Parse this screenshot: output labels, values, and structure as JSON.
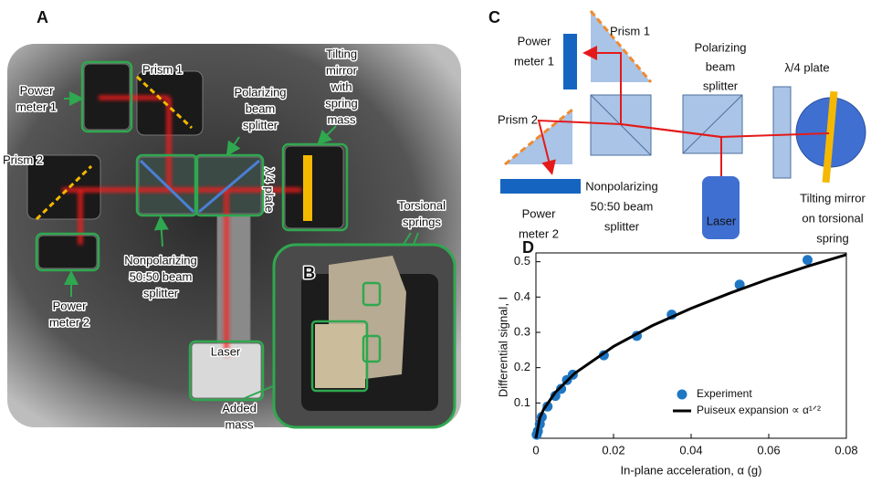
{
  "panel_a": {
    "letter": "A",
    "labels": {
      "prism_1": "Prism 1",
      "power_meter_1": [
        "Power",
        "meter 1"
      ],
      "polarizing_beam_splitter": [
        "Polarizing",
        "beam",
        "splitter"
      ],
      "tilting_mirror": [
        "Tilting",
        "mirror",
        "with",
        "spring",
        "mass"
      ],
      "prism_2": "Prism 2",
      "quarter_wave_plate": "λ/4 plate",
      "nonpolarizing_beam_splitter": [
        "Nonpolarizing",
        "50:50 beam",
        "splitter"
      ],
      "power_meter_2": [
        "Power",
        "meter 2"
      ],
      "laser": "Laser",
      "added_mass": [
        "Added",
        "mass"
      ],
      "torsional_springs": [
        "Torsional",
        "springs"
      ]
    }
  },
  "panel_b": {
    "letter": "B"
  },
  "panel_c": {
    "letter": "C",
    "labels": {
      "power_meter_1": [
        "Power",
        "meter 1"
      ],
      "prism_1": "Prism 1",
      "polarizing_beam_splitter": [
        "Polarizing",
        "beam",
        "splitter"
      ],
      "quarter_wave_plate": "λ/4 plate",
      "prism_2": "Prism 2",
      "power_meter_2": [
        "Power",
        "meter 2"
      ],
      "nonpolarizing_beam_splitter": [
        "Nonpolarizing",
        "50:50 beam",
        "splitter"
      ],
      "laser": "Laser",
      "tilting_mirror": [
        "Tilting mirror",
        "on torsional",
        "spring"
      ]
    }
  },
  "chart_data": {
    "type": "scatter",
    "letter": "D",
    "x_label": "In-plane acceleration, α (g)",
    "y_label": "Differential signal, I",
    "xlim": [
      0,
      0.08
    ],
    "ylim": [
      0,
      0.525
    ],
    "xticks": [
      0,
      0.02,
      0.04,
      0.06,
      0.08
    ],
    "yticks": [
      0.1,
      0.2,
      0.3,
      0.4,
      0.5
    ],
    "legend": "lower right",
    "series": [
      {
        "name": "Experiment",
        "type": "scatter",
        "color": "#1f77c4",
        "x": [
          0.0002,
          0.0005,
          0.001,
          0.0015,
          0.003,
          0.005,
          0.0065,
          0.008,
          0.0095,
          0.0175,
          0.026,
          0.035,
          0.0525,
          0.07
        ],
        "values": [
          0.01,
          0.02,
          0.04,
          0.06,
          0.09,
          0.12,
          0.14,
          0.165,
          0.18,
          0.235,
          0.29,
          0.35,
          0.435,
          0.505
        ]
      },
      {
        "name": "Puiseux expansion ∝ α¹ᐟ²",
        "type": "line",
        "color": "#000000",
        "x": [
          0,
          0.001,
          0.002,
          0.005,
          0.01,
          0.02,
          0.03,
          0.04,
          0.05,
          0.06,
          0.07,
          0.08
        ],
        "values": [
          0,
          0.058,
          0.082,
          0.13,
          0.184,
          0.26,
          0.319,
          0.368,
          0.411,
          0.451,
          0.487,
          0.52
        ]
      }
    ]
  }
}
